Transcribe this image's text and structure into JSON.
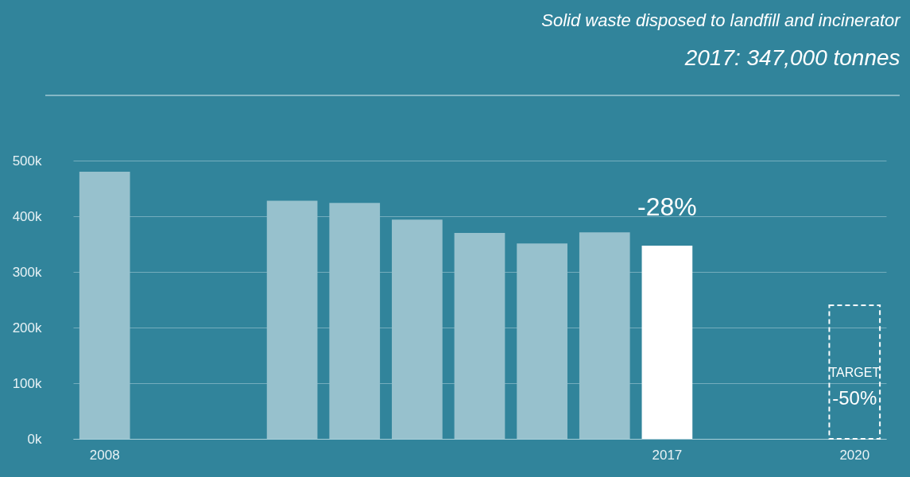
{
  "chart_data": {
    "type": "bar",
    "title": "Solid waste disposed to landfill and incinerator",
    "subtitle": "2017:  347,000  tonnes",
    "categories": [
      "2008",
      null,
      null,
      null,
      null,
      null,
      null,
      null,
      null,
      "2017",
      null,
      null,
      "2020"
    ],
    "series": [
      {
        "colors": [
          "#97c1cd",
          null,
          null,
          "#97c1cd",
          "#97c1cd",
          "#97c1cd",
          "#97c1cd",
          "#97c1cd",
          "#97c1cd",
          "#ffffff",
          null,
          null,
          null
        ],
        "values": [
          480000,
          null,
          null,
          428000,
          424000,
          394000,
          370000,
          351000,
          371000,
          347000,
          null,
          null,
          null
        ]
      },
      {
        "color": "#ffffff",
        "line_style": "dashed",
        "values": [
          null,
          null,
          null,
          null,
          null,
          null,
          null,
          null,
          null,
          null,
          null,
          null,
          240000
        ]
      }
    ],
    "ylim": [
      0,
      500000
    ],
    "yticks": [
      {
        "value": 0,
        "label": "0k"
      },
      {
        "value": 100000,
        "label": "100k"
      },
      {
        "value": 200000,
        "label": "200k"
      },
      {
        "value": 300000,
        "label": "300k"
      },
      {
        "value": 400000,
        "label": "400k"
      },
      {
        "value": 500000,
        "label": "500k"
      }
    ],
    "grid": "y",
    "annotations": [
      "-28%",
      "TARGET",
      "-50%"
    ]
  }
}
